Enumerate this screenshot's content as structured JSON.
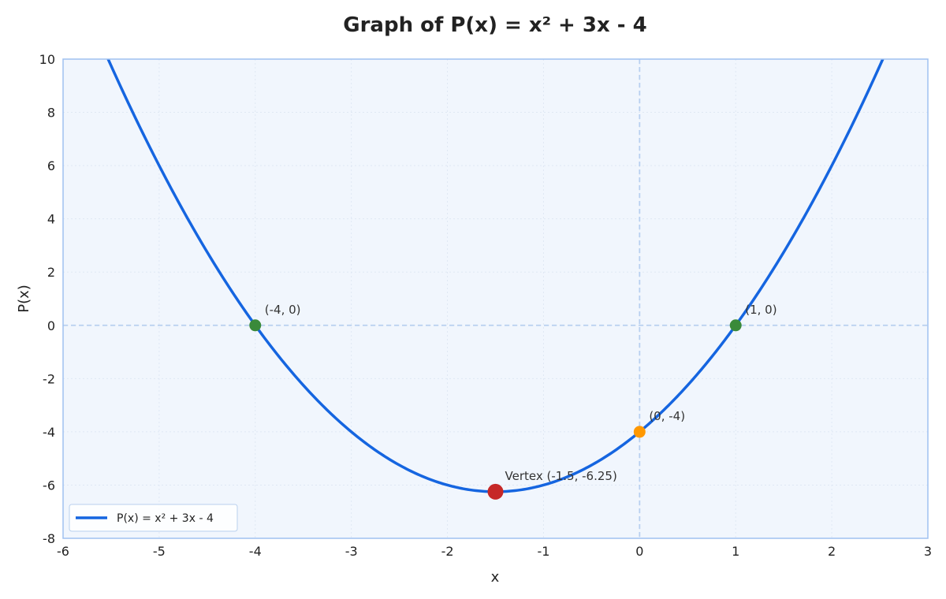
{
  "chart_data": {
    "type": "line",
    "title": "Graph of P(x) = x² + 3x - 4",
    "xlabel": "x",
    "ylabel": "P(x)",
    "xlim": [
      -6,
      3
    ],
    "ylim": [
      -8,
      10
    ],
    "x_ticks": [
      -6,
      -5,
      -4,
      -3,
      -2,
      -1,
      0,
      1,
      2,
      3
    ],
    "y_ticks": [
      -8,
      -6,
      -4,
      -2,
      0,
      2,
      4,
      6,
      8,
      10
    ],
    "x_tick_labels": [
      "-6",
      "-5",
      "-4",
      "-3",
      "-2",
      "-1",
      "0",
      "1",
      "2",
      "3"
    ],
    "y_tick_labels": [
      "-8",
      "-6",
      "-4",
      "-2",
      "0",
      "2",
      "4",
      "6",
      "8",
      "10"
    ],
    "grid": true,
    "legend_position": "bottom-left",
    "series": [
      {
        "name": "P(x) = x² + 3x - 4",
        "color": "#1565e0",
        "function": {
          "a": 1,
          "b": 3,
          "c": -4
        },
        "x": [
          -6,
          -5.5,
          -5,
          -4.5,
          -4,
          -3.5,
          -3,
          -2.5,
          -2,
          -1.5,
          -1,
          -0.5,
          0,
          0.5,
          1,
          1.5,
          2,
          2.5,
          3
        ],
        "y": [
          14,
          9.75,
          6,
          2.75,
          0,
          -2.25,
          -4,
          -5.25,
          -6,
          -6.25,
          -6,
          -5.25,
          -4,
          -2.25,
          0,
          2.75,
          6,
          9.75,
          14
        ]
      }
    ],
    "points": [
      {
        "id": "root-left",
        "x": -4,
        "y": 0,
        "label": "(-4, 0)",
        "color": "#3a8a3a",
        "size": "medium"
      },
      {
        "id": "root-right",
        "x": 1,
        "y": 0,
        "label": "(1, 0)",
        "color": "#3a8a3a",
        "size": "medium"
      },
      {
        "id": "y-intercept",
        "x": 0,
        "y": -4,
        "label": "(0, -4)",
        "color": "#ff9800",
        "size": "medium"
      },
      {
        "id": "vertex",
        "x": -1.5,
        "y": -6.25,
        "label": "Vertex (-1.5, -6.25)",
        "color": "#c62828",
        "size": "large"
      }
    ],
    "reference_lines": [
      {
        "axis": "y",
        "value": 0,
        "style": "dashed",
        "color": "#b8d0f0"
      },
      {
        "axis": "x",
        "value": 0,
        "style": "dashed",
        "color": "#b8d0f0"
      }
    ],
    "colors": {
      "plot_background": "#f1f6fd",
      "plot_border": "#9fc1f0",
      "grid": "#dfe8f4"
    }
  }
}
